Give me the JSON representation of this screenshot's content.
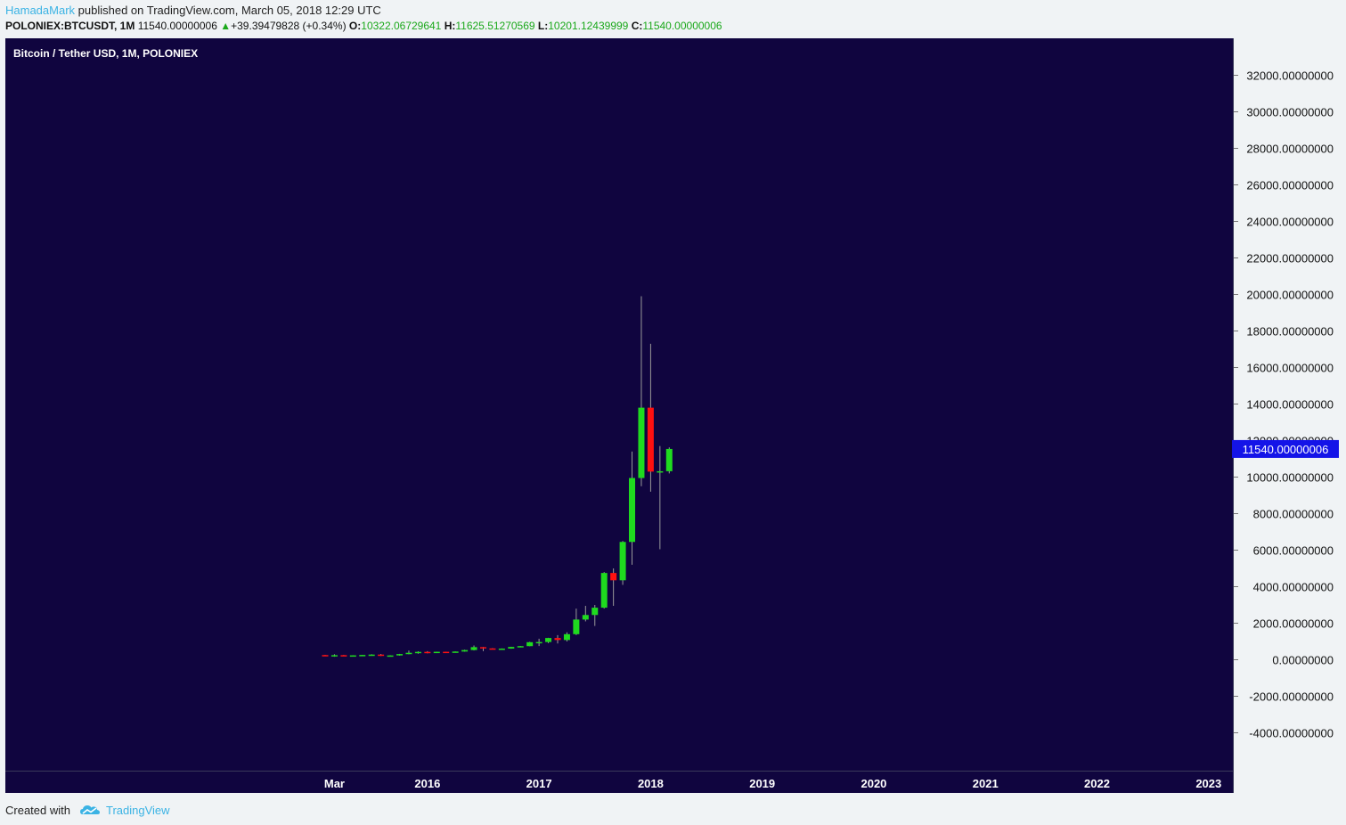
{
  "header": {
    "author": "HamadaMark",
    "published_text": "published on TradingView.com, March 05, 2018 12:29 UTC"
  },
  "ohlc": {
    "symbol": "POLONIEX:BTCUSDT, 1M",
    "last": "11540.00000006",
    "change": "+39.39479828 (+0.34%)",
    "o_label": "O:",
    "o": "10322.06729641",
    "h_label": "H:",
    "h": "11625.51270569",
    "l_label": "L:",
    "l": "10201.12439999",
    "c_label": "C:",
    "c": "11540.00000006"
  },
  "footer": {
    "created_with": "Created with",
    "brand": "TradingView"
  },
  "colors": {
    "background": "#10053f",
    "up": "#1fdb1f",
    "down": "#ff1010",
    "wick": "#9a9a9a",
    "axis_text": "#111111",
    "last_price_bg": "#1414e8",
    "brand": "#3bb3e4"
  },
  "chart_data": {
    "type": "candlestick",
    "title": "Bitcoin / Tether USD, 1M, POLONIEX",
    "last_price_label": "11540.00000006",
    "ylim": [
      -5000,
      33000
    ],
    "y_ticks": [
      32000,
      30000,
      28000,
      26000,
      24000,
      22000,
      20000,
      18000,
      16000,
      14000,
      12000,
      10000,
      8000,
      6000,
      4000,
      2000,
      0,
      -2000,
      -4000
    ],
    "y_tick_labels": [
      "32000.00000000",
      "30000.00000000",
      "28000.00000000",
      "26000.00000000",
      "24000.00000000",
      "22000.00000000",
      "20000.00000000",
      "18000.00000000",
      "16000.00000000",
      "14000.00000000",
      "12000.00000000",
      "10000.00000000",
      "8000.00000000",
      "6000.00000000",
      "4000.00000000",
      "2000.00000000",
      "0.00000000",
      "-2000.00000000",
      "-4000.00000000"
    ],
    "x_ticks": [
      {
        "label": "Mar",
        "index": 1
      },
      {
        "label": "2016",
        "index": 11
      },
      {
        "label": "2017",
        "index": 23
      },
      {
        "label": "2018",
        "index": 35
      },
      {
        "label": "2019",
        "index": 47
      },
      {
        "label": "2020",
        "index": 59
      },
      {
        "label": "2021",
        "index": 71
      },
      {
        "label": "2022",
        "index": 83
      },
      {
        "label": "2023",
        "index": 95
      }
    ],
    "candles": [
      {
        "o": 255,
        "h": 262,
        "l": 218,
        "c": 245
      },
      {
        "o": 245,
        "h": 300,
        "l": 165,
        "c": 250
      },
      {
        "o": 250,
        "h": 260,
        "l": 215,
        "c": 235
      },
      {
        "o": 235,
        "h": 245,
        "l": 218,
        "c": 240
      },
      {
        "o": 240,
        "h": 265,
        "l": 220,
        "c": 262
      },
      {
        "o": 262,
        "h": 300,
        "l": 256,
        "c": 282
      },
      {
        "o": 282,
        "h": 318,
        "l": 205,
        "c": 230
      },
      {
        "o": 230,
        "h": 245,
        "l": 220,
        "c": 235
      },
      {
        "o": 235,
        "h": 320,
        "l": 225,
        "c": 312
      },
      {
        "o": 312,
        "h": 500,
        "l": 300,
        "c": 380
      },
      {
        "o": 380,
        "h": 460,
        "l": 330,
        "c": 430
      },
      {
        "o": 430,
        "h": 470,
        "l": 350,
        "c": 370
      },
      {
        "o": 370,
        "h": 440,
        "l": 365,
        "c": 435
      },
      {
        "o": 435,
        "h": 440,
        "l": 410,
        "c": 415
      },
      {
        "o": 415,
        "h": 455,
        "l": 400,
        "c": 448
      },
      {
        "o": 448,
        "h": 550,
        "l": 440,
        "c": 530
      },
      {
        "o": 530,
        "h": 780,
        "l": 510,
        "c": 690
      },
      {
        "o": 690,
        "h": 700,
        "l": 470,
        "c": 620
      },
      {
        "o": 620,
        "h": 630,
        "l": 560,
        "c": 575
      },
      {
        "o": 575,
        "h": 620,
        "l": 570,
        "c": 610
      },
      {
        "o": 610,
        "h": 710,
        "l": 600,
        "c": 700
      },
      {
        "o": 700,
        "h": 755,
        "l": 680,
        "c": 745
      },
      {
        "o": 745,
        "h": 980,
        "l": 740,
        "c": 960
      },
      {
        "o": 960,
        "h": 1150,
        "l": 750,
        "c": 970
      },
      {
        "o": 970,
        "h": 1200,
        "l": 910,
        "c": 1190
      },
      {
        "o": 1190,
        "h": 1350,
        "l": 890,
        "c": 1080
      },
      {
        "o": 1080,
        "h": 1500,
        "l": 1000,
        "c": 1400
      },
      {
        "o": 1400,
        "h": 2800,
        "l": 1350,
        "c": 2200
      },
      {
        "o": 2200,
        "h": 2950,
        "l": 2100,
        "c": 2450
      },
      {
        "o": 2450,
        "h": 3000,
        "l": 1850,
        "c": 2850
      },
      {
        "o": 2850,
        "h": 4800,
        "l": 2800,
        "c": 4750
      },
      {
        "o": 4750,
        "h": 5000,
        "l": 2950,
        "c": 4350
      },
      {
        "o": 4350,
        "h": 6500,
        "l": 4100,
        "c": 6450
      },
      {
        "o": 6450,
        "h": 11400,
        "l": 5200,
        "c": 9950
      },
      {
        "o": 9950,
        "h": 19900,
        "l": 9500,
        "c": 13800
      },
      {
        "o": 13800,
        "h": 17300,
        "l": 9200,
        "c": 10300
      },
      {
        "o": 10300,
        "h": 11700,
        "l": 6050,
        "c": 10320
      },
      {
        "o": 10322.06729641,
        "h": 11625.51270569,
        "l": 10201.12439999,
        "c": 11540.00000006
      }
    ]
  }
}
